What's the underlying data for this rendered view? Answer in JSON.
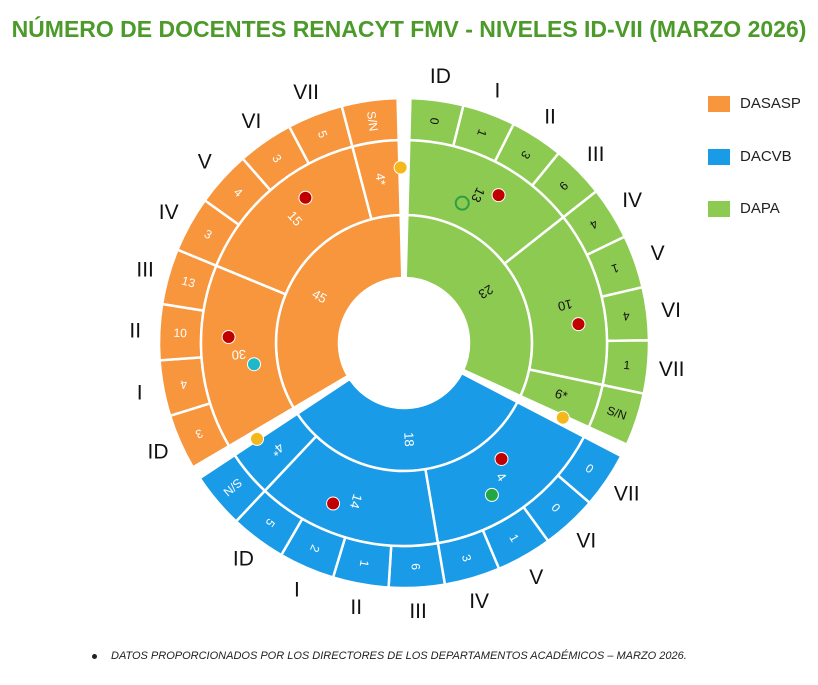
{
  "title": "NÚMERO DE DOCENTES RENACYT FMV - NIVELES ID-VII (MARZO 2026)",
  "footnote": "DATOS PROPORCIONADOS POR LOS DIRECTORES DE LOS DEPARTAMENTOS ACADÉMICOS – MARZO 2026.",
  "colors": {
    "DASASP": "#f7963c",
    "DACVB": "#1a9be8",
    "DAPA": "#8cca52",
    "marker_red": "#c00000",
    "marker_yellow": "#f5b81c",
    "marker_green_ring": "#2ea043",
    "marker_green": "#22a745",
    "marker_cyan": "#1fb8c8"
  },
  "legend": [
    {
      "label": "DASASP",
      "color": "#f7963c"
    },
    {
      "label": "DACVB",
      "color": "#1a9be8"
    },
    {
      "label": "DAPA",
      "color": "#8cca52"
    }
  ],
  "chart_data": {
    "type": "sunburst",
    "levels_order": [
      "ID",
      "I",
      "II",
      "III",
      "IV",
      "V",
      "VI",
      "VII",
      "S/N"
    ],
    "departments": [
      {
        "name": "DAPA",
        "total": "23",
        "groups": [
          {
            "label": "13",
            "levels": [
              "ID",
              "I",
              "II",
              "III"
            ],
            "values": [
              0,
              1,
              3,
              9
            ],
            "markers": [
              "marker_red",
              "marker_green_ring"
            ]
          },
          {
            "label": "10",
            "levels": [
              "IV",
              "V",
              "VI",
              "VII"
            ],
            "values": [
              4,
              1,
              4,
              1
            ],
            "markers": [
              "marker_red"
            ]
          },
          {
            "label": "6*",
            "levels": [
              "S/N"
            ],
            "values": [
              "S/N"
            ],
            "markers": [
              "marker_yellow"
            ]
          }
        ]
      },
      {
        "name": "DACVB",
        "total": "18",
        "groups": [
          {
            "label": "4",
            "levels": [
              "ID",
              "I",
              "II",
              "III"
            ],
            "values": [
              0,
              0,
              1,
              3
            ],
            "markers": [
              "marker_green",
              "marker_red"
            ]
          },
          {
            "label": "14",
            "levels": [
              "IV",
              "V",
              "VI",
              "VII"
            ],
            "values": [
              6,
              1,
              2,
              5
            ],
            "markers": [
              "marker_red"
            ]
          },
          {
            "label": "4*",
            "levels": [
              "S/N"
            ],
            "values": [
              "S/N"
            ],
            "markers": [
              "marker_yellow"
            ]
          }
        ]
      },
      {
        "name": "DASASP",
        "total": "45",
        "groups": [
          {
            "label": "30",
            "levels": [
              "ID",
              "I",
              "II",
              "III"
            ],
            "values": [
              3,
              4,
              10,
              13
            ],
            "markers": [
              "marker_red",
              "marker_cyan"
            ]
          },
          {
            "label": "15",
            "levels": [
              "IV",
              "V",
              "VI",
              "VII"
            ],
            "values": [
              3,
              4,
              3,
              5
            ],
            "markers": [
              "marker_red"
            ]
          },
          {
            "label": "4*",
            "levels": [
              "S/N"
            ],
            "values": [
              "S/N"
            ],
            "markers": [
              "marker_yellow"
            ]
          }
        ]
      }
    ],
    "outer_labels": [
      "ID",
      "I",
      "II",
      "III",
      "IV",
      "V",
      "VI",
      "VII",
      "VII",
      "VI",
      "V",
      "IV",
      "III",
      "II",
      "I",
      "ID",
      "ID",
      "I",
      "II",
      "III",
      "IV",
      "V",
      "VI",
      "VII"
    ]
  }
}
